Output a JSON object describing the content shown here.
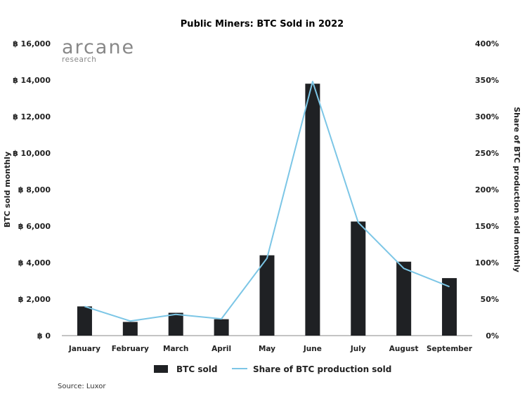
{
  "chart_data": {
    "type": "bar",
    "title": "Public Miners: BTC Sold in 2022",
    "categories": [
      "January",
      "February",
      "March",
      "April",
      "May",
      "June",
      "July",
      "August",
      "September"
    ],
    "series": [
      {
        "name": "BTC sold",
        "type": "bar",
        "axis": "left",
        "values": [
          1600,
          750,
          1250,
          900,
          4400,
          13800,
          6250,
          4050,
          3150
        ],
        "color": "#1f2124"
      },
      {
        "name": "Share of BTC production sold",
        "type": "line",
        "axis": "right",
        "values": [
          40,
          20,
          29,
          23,
          106,
          348,
          155,
          92,
          67
        ],
        "color": "#7cc6e6"
      }
    ],
    "ylabel": "BTC sold monthly",
    "ylabel_right": "Share of BTC production sold monthly",
    "ylim": [
      0,
      16000
    ],
    "ylim_right": [
      0,
      400
    ],
    "yticks": [
      "฿ 0",
      "฿ 2,000",
      "฿ 4,000",
      "฿ 6,000",
      "฿ 8,000",
      "฿ 10,000",
      "฿ 12,000",
      "฿ 14,000",
      "฿ 16,000"
    ],
    "yticks_right": [
      "0%",
      "50%",
      "100%",
      "150%",
      "200%",
      "250%",
      "300%",
      "350%",
      "400%"
    ],
    "grid": false,
    "legend_position": "bottom-center"
  },
  "branding": {
    "logo_main": "arcane",
    "logo_sub": "research"
  },
  "source": "Source: Luxor"
}
